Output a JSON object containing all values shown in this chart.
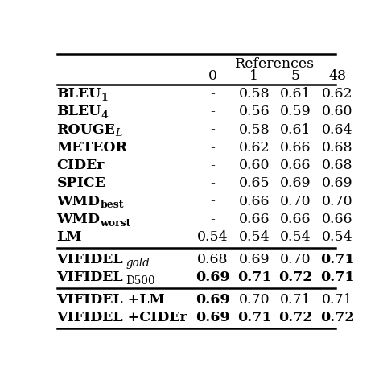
{
  "title": "References",
  "col_headers": [
    "0",
    "1",
    "5",
    "48"
  ],
  "rows": [
    {
      "label_main": "BLEU",
      "label_sub": "1",
      "label_sub_style": "bold_normal",
      "values": [
        "-",
        "0.58",
        "0.61",
        "0.62"
      ],
      "bold_values": [
        false,
        false,
        false,
        false
      ]
    },
    {
      "label_main": "BLEU",
      "label_sub": "4",
      "label_sub_style": "bold_normal",
      "values": [
        "-",
        "0.56",
        "0.59",
        "0.60"
      ],
      "bold_values": [
        false,
        false,
        false,
        false
      ]
    },
    {
      "label_main": "ROUGE",
      "label_sub": "L",
      "label_sub_style": "italic",
      "values": [
        "-",
        "0.58",
        "0.61",
        "0.64"
      ],
      "bold_values": [
        false,
        false,
        false,
        false
      ]
    },
    {
      "label_main": "METEOR",
      "label_sub": "",
      "label_sub_style": "",
      "values": [
        "-",
        "0.62",
        "0.66",
        "0.68"
      ],
      "bold_values": [
        false,
        false,
        false,
        false
      ]
    },
    {
      "label_main": "CIDEr",
      "label_sub": "",
      "label_sub_style": "",
      "values": [
        "-",
        "0.60",
        "0.66",
        "0.68"
      ],
      "bold_values": [
        false,
        false,
        false,
        false
      ]
    },
    {
      "label_main": "SPICE",
      "label_sub": "",
      "label_sub_style": "",
      "values": [
        "-",
        "0.65",
        "0.69",
        "0.69"
      ],
      "bold_values": [
        false,
        false,
        false,
        false
      ]
    },
    {
      "label_main": "WMD",
      "label_sub": "best",
      "label_sub_style": "bold_normal",
      "values": [
        "-",
        "0.66",
        "0.70",
        "0.70"
      ],
      "bold_values": [
        false,
        false,
        false,
        false
      ]
    },
    {
      "label_main": "WMD",
      "label_sub": "worst",
      "label_sub_style": "bold_normal",
      "values": [
        "-",
        "0.66",
        "0.66",
        "0.66"
      ],
      "bold_values": [
        false,
        false,
        false,
        false
      ]
    },
    {
      "label_main": "LM",
      "label_sub": "",
      "label_sub_style": "",
      "values": [
        "0.54",
        "0.54",
        "0.54",
        "0.54"
      ],
      "bold_values": [
        false,
        false,
        false,
        false
      ]
    }
  ],
  "rows2": [
    {
      "label_main": "VIFIDEL",
      "label_sub": "gold",
      "label_sub_italic": true,
      "values": [
        "0.68",
        "0.69",
        "0.70",
        "0.71"
      ],
      "bold_values": [
        false,
        false,
        false,
        true
      ]
    },
    {
      "label_main": "VIFIDEL",
      "label_sub": "D500",
      "label_sub_italic": false,
      "values": [
        "0.69",
        "0.71",
        "0.72",
        "0.71"
      ],
      "bold_values": [
        true,
        true,
        true,
        true
      ]
    }
  ],
  "rows3": [
    {
      "label_main": "VIFIDEL +LM",
      "values": [
        "0.69",
        "0.70",
        "0.71",
        "0.71"
      ],
      "bold_values": [
        true,
        false,
        false,
        false
      ]
    },
    {
      "label_main": "VIFIDEL +CIDEr",
      "values": [
        "0.69",
        "0.71",
        "0.72",
        "0.72"
      ],
      "bold_values": [
        true,
        true,
        true,
        true
      ]
    }
  ],
  "fig_width": 4.76,
  "fig_height": 4.82,
  "dpi": 100
}
